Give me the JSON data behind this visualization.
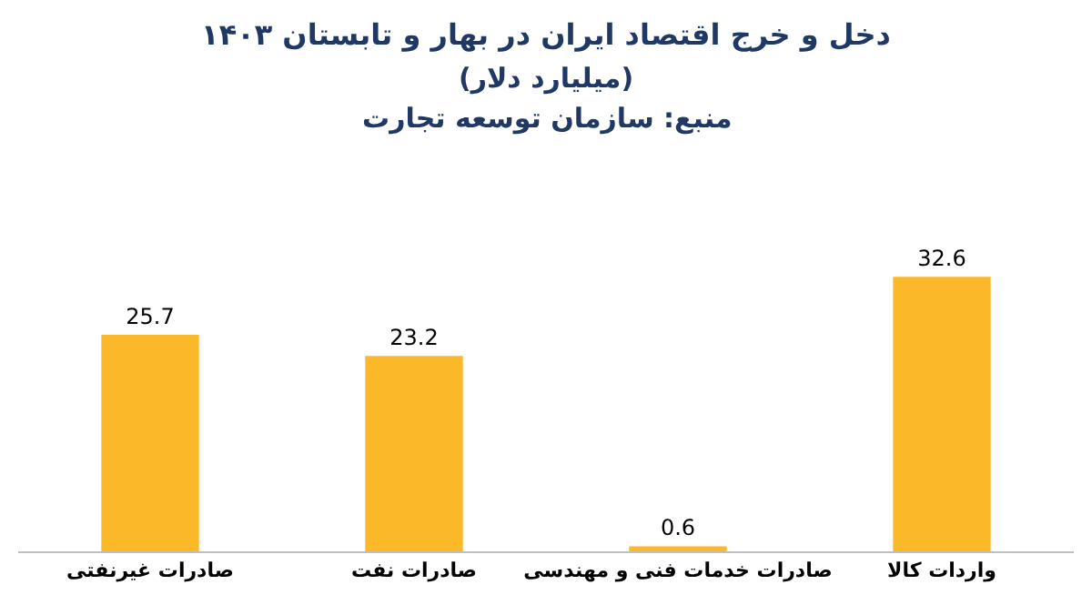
{
  "chart_data": {
    "type": "bar",
    "title": "دخل و خرج اقتصاد ایران در بهار و تابستان ۱۴۰۳",
    "subtitle": "(میلیارد دلار)",
    "annotations": [
      "منبع: سازمان توسعه تجارت"
    ],
    "categories": [
      "صادرات غیرنفتی",
      "صادرات نفت",
      "صادرات خدمات فنی و مهندسی",
      "واردات کالا"
    ],
    "values": [
      25.7,
      23.2,
      0.6,
      32.6
    ],
    "color": "#fbb829",
    "data_labels": true
  }
}
